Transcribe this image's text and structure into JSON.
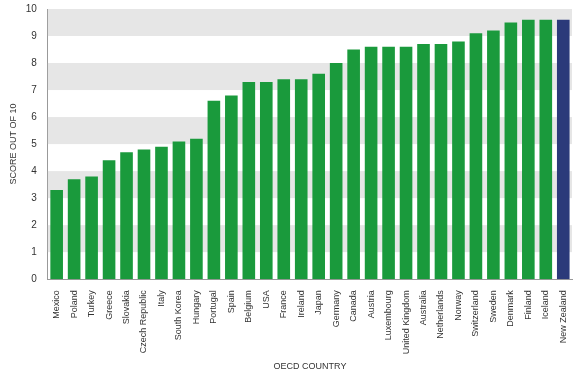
{
  "chart_data": {
    "type": "bar",
    "x_label": "OECD COUNTRY",
    "y_label": "SCORE OUT OF 10",
    "categories": [
      "Mexico",
      "Poland",
      "Turkey",
      "Greece",
      "Slovakia",
      "Czech Republic",
      "Italy",
      "South Korea",
      "Hungary",
      "Portugal",
      "Spain",
      "Belgium",
      "USA",
      "France",
      "Ireland",
      "Japan",
      "Germany",
      "Canada",
      "Austria",
      "Luxembourg",
      "United Kingdom",
      "Australia",
      "Netherlands",
      "Norway",
      "Switzerland",
      "Sweden",
      "Denmark",
      "Finland",
      "Iceland",
      "New Zealand"
    ],
    "values": [
      3.3,
      3.7,
      3.8,
      4.4,
      4.7,
      4.8,
      4.9,
      5.1,
      5.2,
      6.6,
      6.8,
      7.3,
      7.3,
      7.4,
      7.4,
      7.6,
      8.0,
      8.5,
      8.6,
      8.6,
      8.6,
      8.7,
      8.7,
      8.8,
      9.1,
      9.2,
      9.5,
      9.6,
      9.6,
      9.6
    ],
    "colors": [
      "#1a9a3c",
      "#1a9a3c",
      "#1a9a3c",
      "#1a9a3c",
      "#1a9a3c",
      "#1a9a3c",
      "#1a9a3c",
      "#1a9a3c",
      "#1a9a3c",
      "#1a9a3c",
      "#1a9a3c",
      "#1a9a3c",
      "#1a9a3c",
      "#1a9a3c",
      "#1a9a3c",
      "#1a9a3c",
      "#1a9a3c",
      "#1a9a3c",
      "#1a9a3c",
      "#1a9a3c",
      "#1a9a3c",
      "#1a9a3c",
      "#1a9a3c",
      "#1a9a3c",
      "#1a9a3c",
      "#1a9a3c",
      "#1a9a3c",
      "#1a9a3c",
      "#1a9a3c",
      "#2b3a7a"
    ],
    "ylim": [
      0,
      10
    ],
    "yticks": [
      0,
      1,
      2,
      3,
      4,
      5,
      6,
      7,
      8,
      9,
      10
    ],
    "grid": true
  }
}
